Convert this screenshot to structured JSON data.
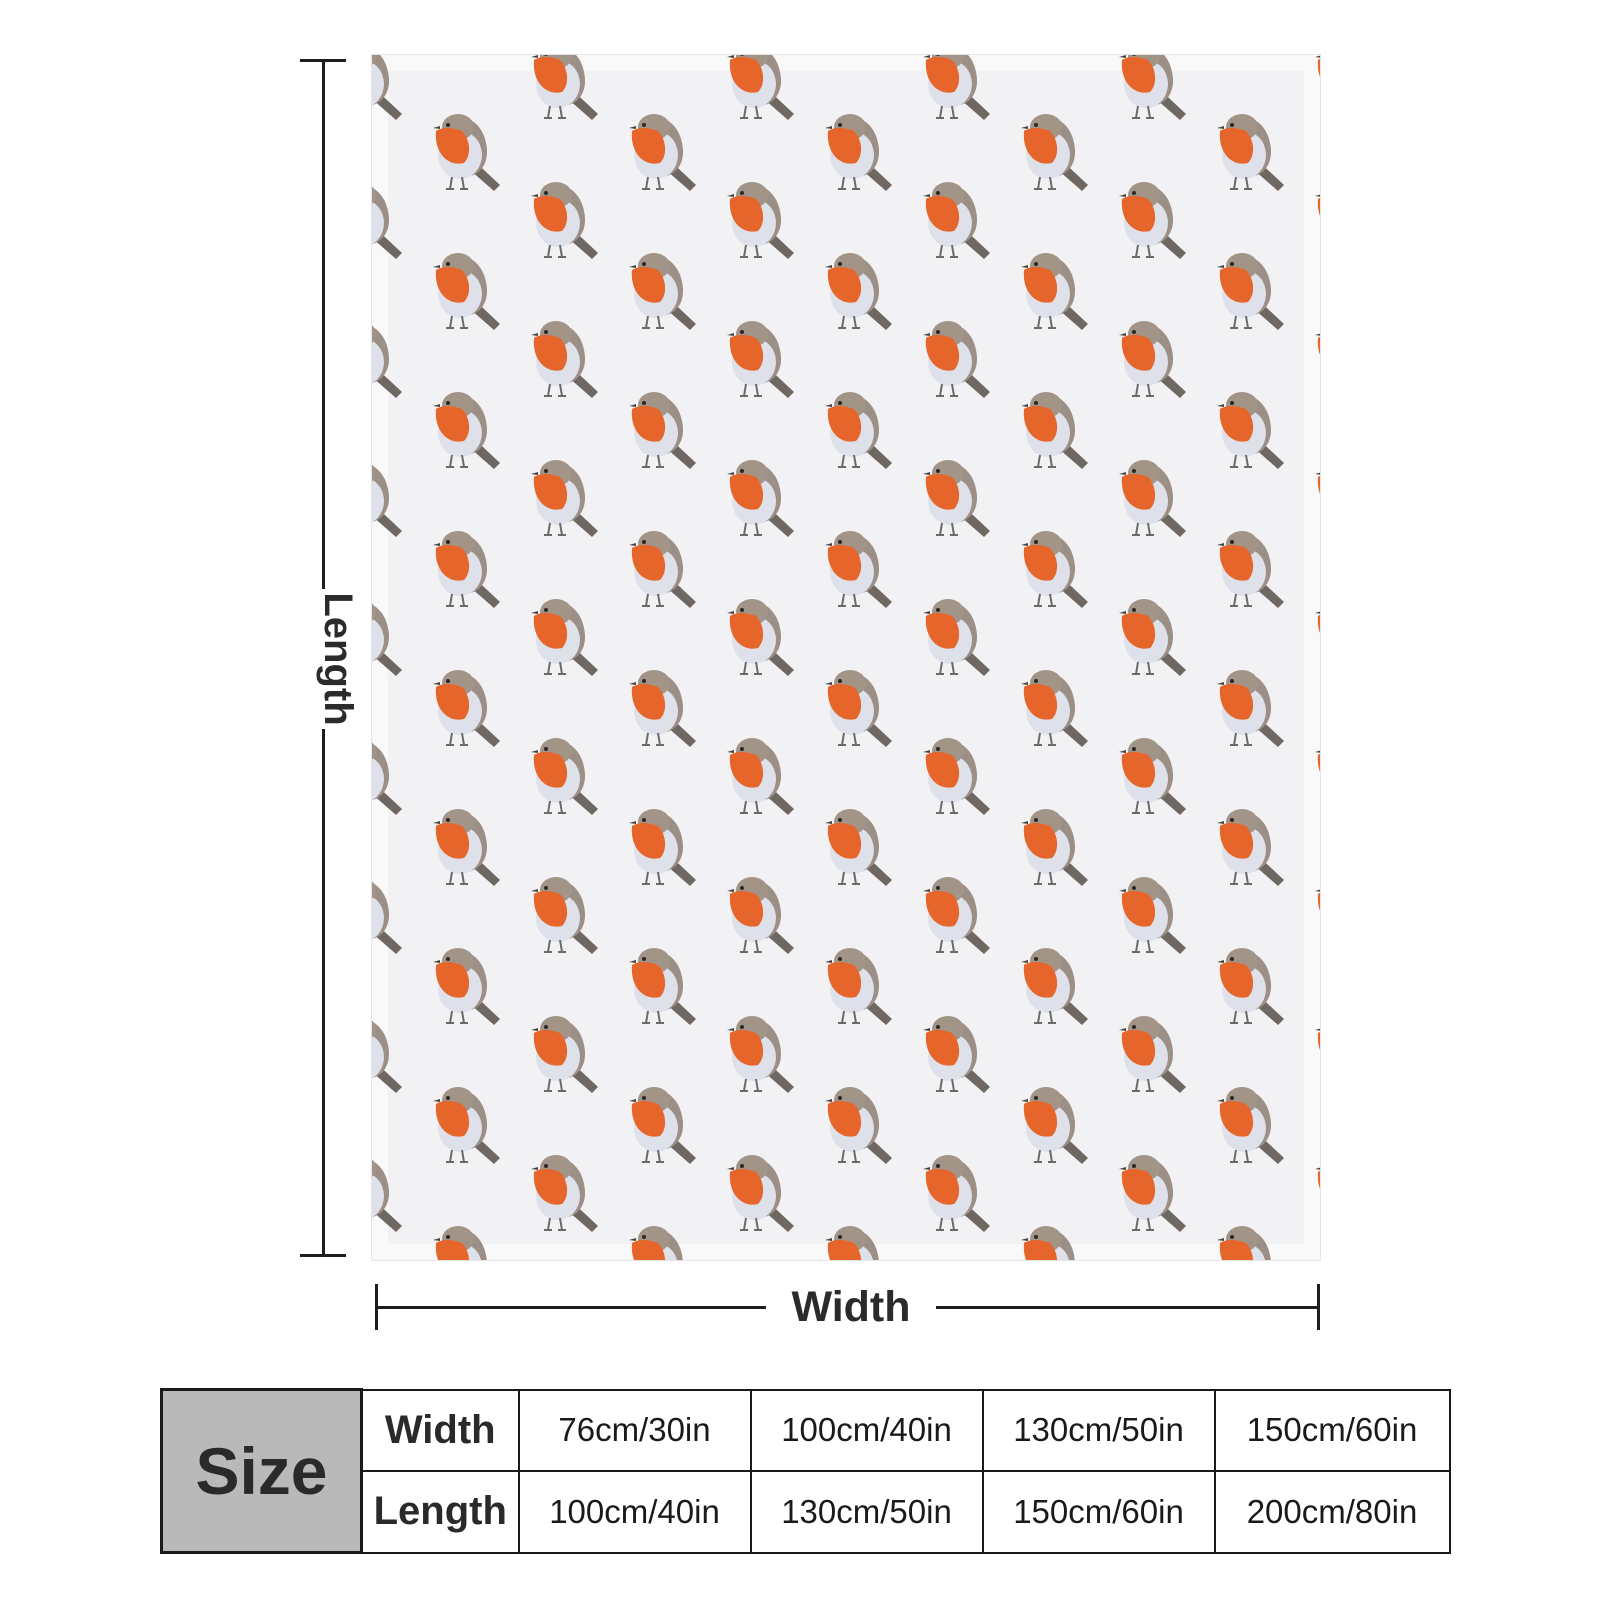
{
  "product": {
    "pattern_motif": "robin-icon",
    "colors": {
      "robin_breast": "#e6652a",
      "robin_back": "#9b8f86",
      "background": "#f2f2f4"
    }
  },
  "dimension_labels": {
    "length": "Length",
    "width": "Width"
  },
  "size_table": {
    "header": "Size",
    "rows": [
      {
        "label": "Width",
        "values": [
          "76cm/30in",
          "100cm/40in",
          "130cm/50in",
          "150cm/60in"
        ]
      },
      {
        "label": "Length",
        "values": [
          "100cm/40in",
          "130cm/50in",
          "150cm/60in",
          "200cm/80in"
        ]
      }
    ]
  }
}
